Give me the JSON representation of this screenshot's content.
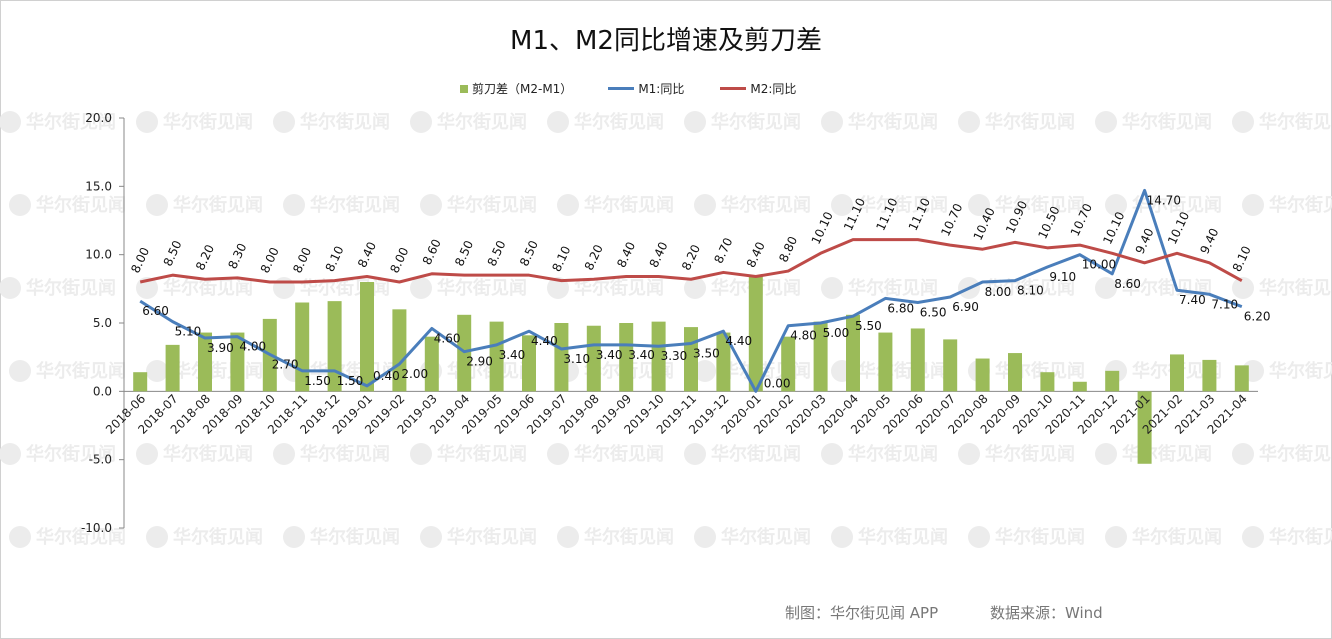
{
  "chart_data": {
    "type": "bar+line",
    "title": "M1、M2同比增速及剪刀差",
    "categories": [
      "2018-06",
      "2018-07",
      "2018-08",
      "2018-09",
      "2018-10",
      "2018-11",
      "2018-12",
      "2019-01",
      "2019-02",
      "2019-03",
      "2019-04",
      "2019-05",
      "2019-06",
      "2019-07",
      "2019-08",
      "2019-09",
      "2019-10",
      "2019-11",
      "2019-12",
      "2020-01",
      "2020-02",
      "2020-03",
      "2020-04",
      "2020-05",
      "2020-06",
      "2020-07",
      "2020-08",
      "2020-09",
      "2020-10",
      "2020-11",
      "2020-12",
      "2021-01",
      "2021-02",
      "2021-03",
      "2021-04"
    ],
    "series": [
      {
        "name": "剪刀差（M2-M1）",
        "type": "bar",
        "color": "#9bbb59",
        "values": [
          1.4,
          3.4,
          4.3,
          4.3,
          5.3,
          6.5,
          6.6,
          8.0,
          6.0,
          4.0,
          5.6,
          5.1,
          4.1,
          5.0,
          4.8,
          5.0,
          5.1,
          4.7,
          4.3,
          8.4,
          4.0,
          5.1,
          5.6,
          4.3,
          4.6,
          3.8,
          2.4,
          2.8,
          1.4,
          0.7,
          1.5,
          -5.3,
          2.7,
          2.3,
          1.9
        ]
      },
      {
        "name": "M1:同比",
        "type": "line",
        "color": "#4a7ebb",
        "values": [
          6.6,
          5.1,
          3.9,
          4.0,
          2.7,
          1.5,
          1.5,
          0.4,
          2.0,
          4.6,
          2.9,
          3.4,
          4.4,
          3.1,
          3.4,
          3.4,
          3.3,
          3.5,
          4.4,
          0.0,
          4.8,
          5.0,
          5.5,
          6.8,
          6.5,
          6.9,
          8.0,
          8.1,
          9.1,
          10.0,
          8.6,
          14.7,
          7.4,
          7.1,
          6.2
        ]
      },
      {
        "name": "M2:同比",
        "type": "line",
        "color": "#be4b48",
        "values": [
          8.0,
          8.5,
          8.2,
          8.3,
          8.0,
          8.0,
          8.1,
          8.4,
          8.0,
          8.6,
          8.5,
          8.5,
          8.5,
          8.1,
          8.2,
          8.4,
          8.4,
          8.2,
          8.7,
          8.4,
          8.8,
          10.1,
          11.1,
          11.1,
          11.1,
          10.7,
          10.4,
          10.9,
          10.5,
          10.7,
          10.1,
          9.4,
          10.1,
          9.4,
          8.1
        ]
      }
    ],
    "ylim": [
      -10,
      20
    ],
    "yticks": [
      -10,
      -5,
      0,
      5,
      10,
      15,
      20
    ],
    "grid": false,
    "legend": "top"
  },
  "footer": {
    "credit": "制图：华尔街见闻 APP",
    "source": "数据来源：Wind"
  },
  "watermark": "华尔街见闻"
}
